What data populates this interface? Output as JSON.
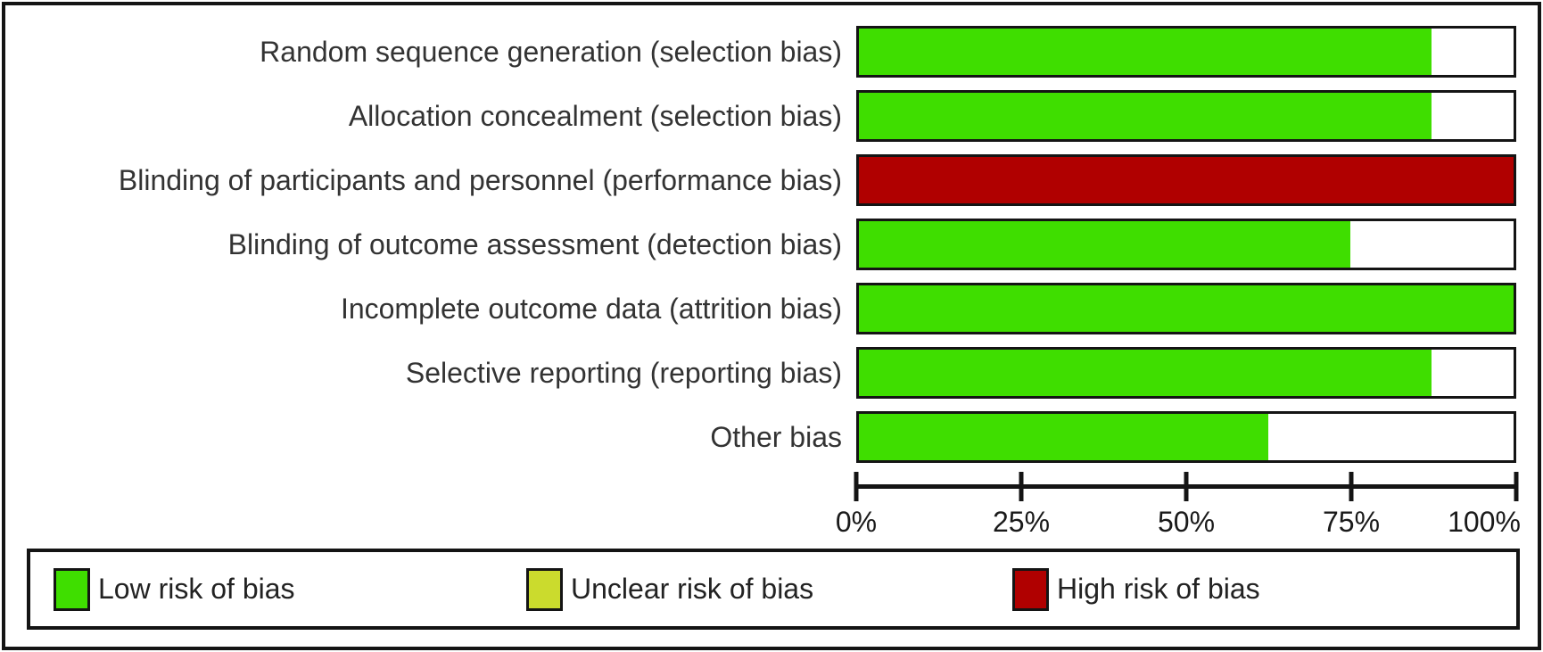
{
  "chart_data": {
    "type": "bar",
    "orientation": "horizontal",
    "stacked": true,
    "title": "",
    "xlabel": "",
    "ylabel": "",
    "xlim": [
      0,
      100
    ],
    "x_ticks": [
      "0%",
      "25%",
      "50%",
      "75%",
      "100%"
    ],
    "grid": false,
    "legend_position": "bottom",
    "categories": [
      "Random sequence generation (selection bias)",
      "Allocation concealment (selection bias)",
      "Blinding of participants and personnel (performance bias)",
      "Blinding of outcome assessment (detection bias)",
      "Incomplete outcome data (attrition bias)",
      "Selective reporting (reporting bias)",
      "Other bias"
    ],
    "series": [
      {
        "key": "low-risk",
        "name": "Low risk of bias",
        "color": "#3FDE00",
        "values": [
          87.5,
          87.5,
          0,
          75,
          100,
          87.5,
          62.5
        ]
      },
      {
        "key": "unclear-risk",
        "name": "Unclear risk of bias",
        "color": "#CBDB2D",
        "values": [
          0,
          0,
          0,
          0,
          0,
          0,
          0
        ]
      },
      {
        "key": "high-risk",
        "name": "High risk of bias",
        "color": "#B00000",
        "values": [
          0,
          0,
          100,
          0,
          0,
          0,
          0
        ]
      }
    ]
  },
  "legend": {
    "items": [
      {
        "key": "low-risk",
        "label": "Low risk of bias",
        "color": "#3FDE00"
      },
      {
        "key": "unclear-risk",
        "label": "Unclear risk of bias",
        "color": "#CBDB2D"
      },
      {
        "key": "high-risk",
        "label": "High risk of bias",
        "color": "#B00000"
      }
    ]
  }
}
